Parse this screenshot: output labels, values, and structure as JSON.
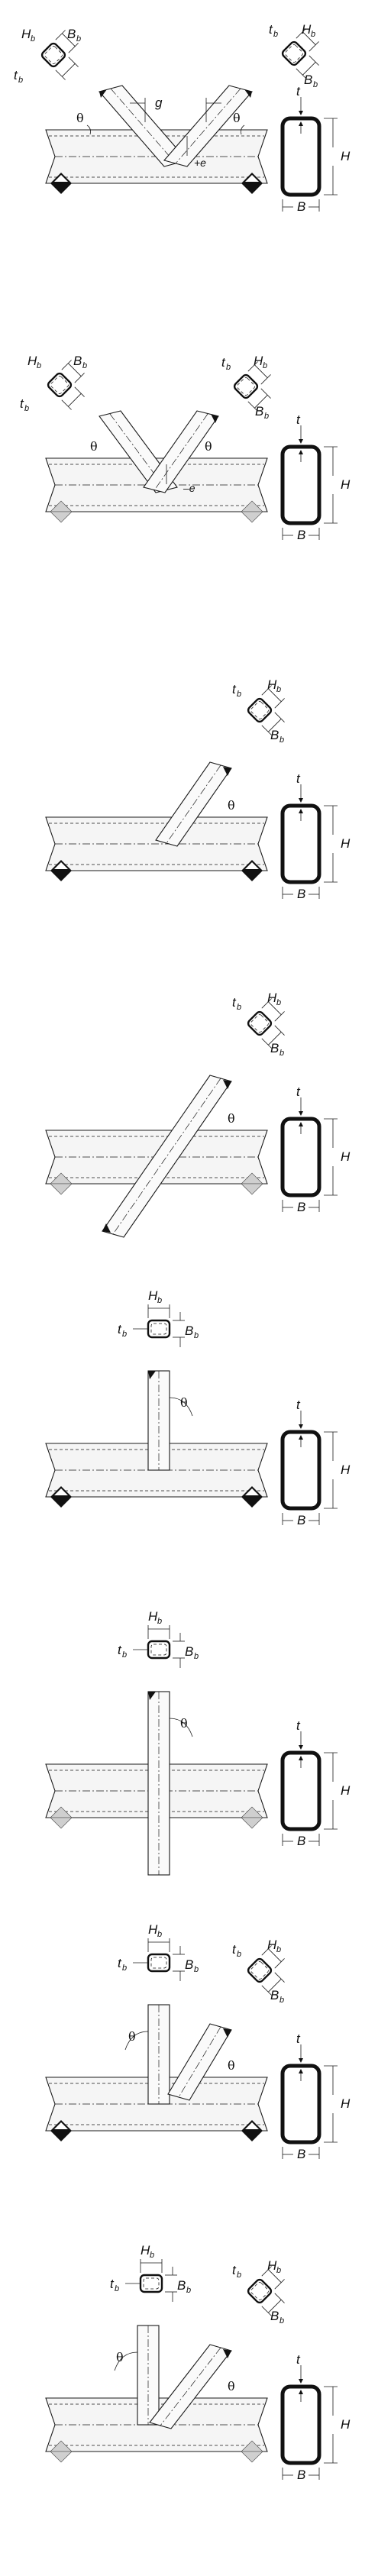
{
  "labels": {
    "H_main": "H",
    "B_main": "B",
    "t_main": "t",
    "H_branch": "H",
    "B_branch": "B",
    "t_branch": "t",
    "sub_b": "b",
    "theta": "θ",
    "gap": "g",
    "plus_e": "+e",
    "minus_e": "–e"
  },
  "panels": [
    {
      "name": "gapped-k-joint"
    },
    {
      "name": "overlapped-k-joint"
    },
    {
      "name": "y-joint"
    },
    {
      "name": "cross-joint-inclined"
    },
    {
      "name": "t-joint"
    },
    {
      "name": "x-joint"
    },
    {
      "name": "gapped-ky-joint"
    },
    {
      "name": "overlapped-ky-joint"
    }
  ],
  "colors": {
    "line": "#1a1a1a",
    "support_black": "#111111",
    "support_gray": "#cfcfcf",
    "chord_fill": "#f5f5f5"
  }
}
